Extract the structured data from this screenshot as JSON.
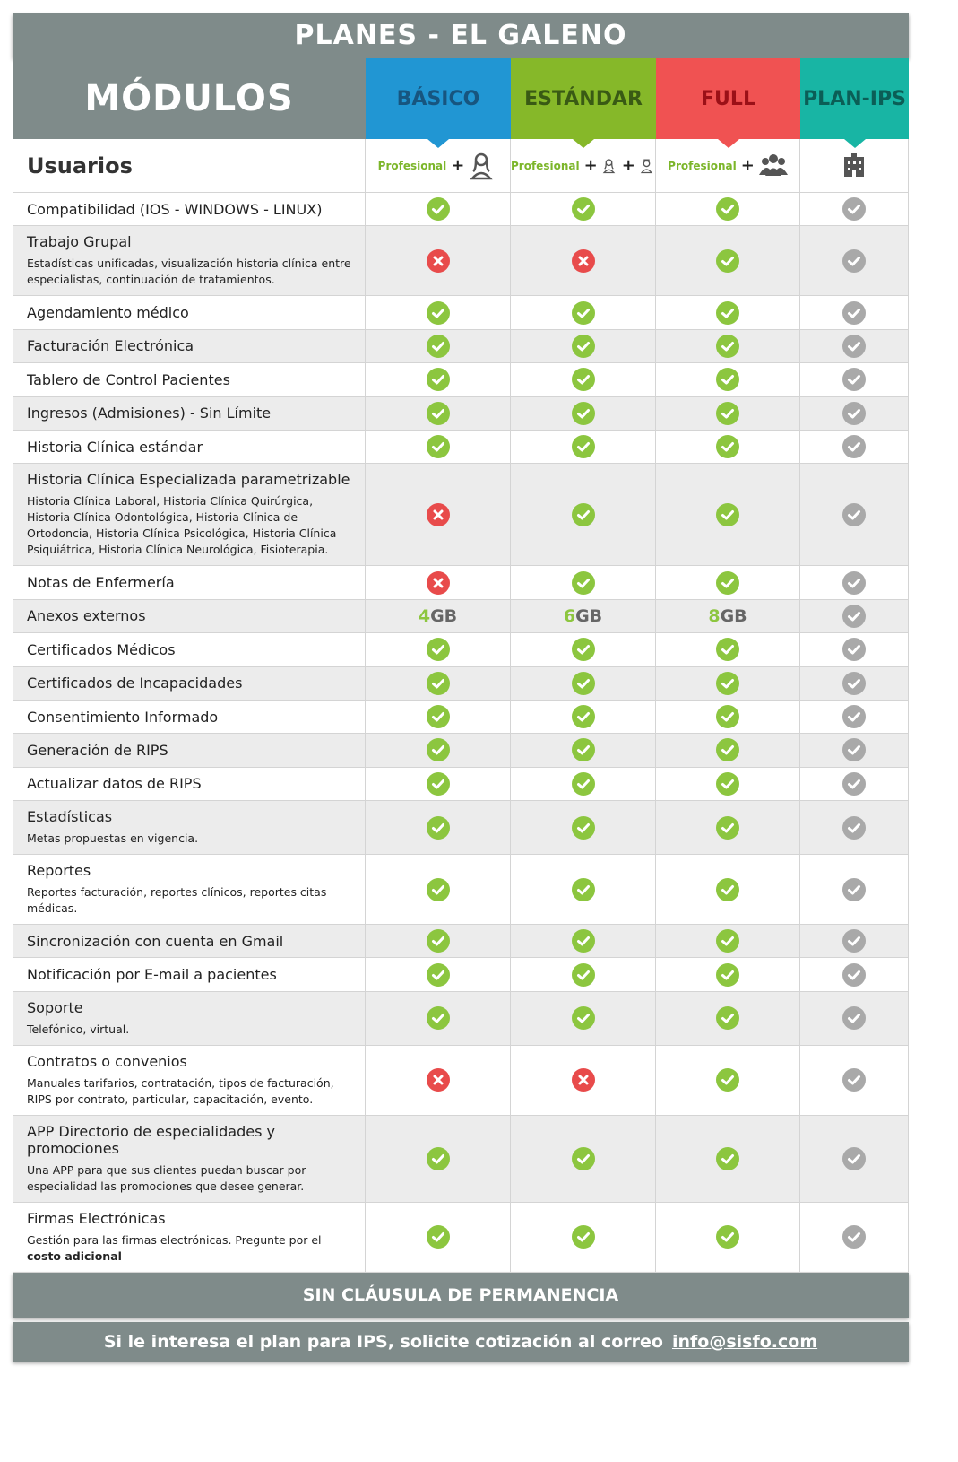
{
  "title": "PLANES - EL GALENO",
  "header": {
    "modules": "MÓDULOS",
    "plans": [
      {
        "name": "BÁSICO",
        "color": "#2196d3",
        "text_color": "#17557f"
      },
      {
        "name": "ESTÁNDAR",
        "color": "#86b829",
        "text_color": "#395a14"
      },
      {
        "name": "FULL",
        "color": "#f05252",
        "text_color": "#9b1017"
      },
      {
        "name": "PLAN-IPS",
        "color": "#18b5a4",
        "text_color": "#0b5e56"
      }
    ]
  },
  "users": {
    "label": "Usuarios",
    "cells": [
      {
        "text": "Profesional",
        "plus": [
          "+"
        ],
        "icons": [
          "woman"
        ]
      },
      {
        "text": "Profesional",
        "plus": [
          "+",
          "+"
        ],
        "icons": [
          "woman",
          "nurse"
        ]
      },
      {
        "text": "Profesional",
        "plus": [
          "+"
        ],
        "icons": [
          "group"
        ]
      },
      {
        "text": null,
        "plus": [],
        "icons": [
          "building"
        ]
      }
    ]
  },
  "rows": [
    {
      "name": "Compatibilidad (IOS - WINDOWS - LINUX)",
      "values": [
        "check",
        "check",
        "check",
        "na"
      ]
    },
    {
      "name": "Trabajo Grupal",
      "desc": "Estadísticas unificadas, visualización historia clínica entre especialistas, continuación de tratamientos.",
      "values": [
        "cross",
        "cross",
        "check",
        "na"
      ]
    },
    {
      "name": "Agendamiento médico",
      "values": [
        "check",
        "check",
        "check",
        "na"
      ]
    },
    {
      "name": "Facturación Electrónica",
      "values": [
        "check",
        "check",
        "check",
        "na"
      ]
    },
    {
      "name": "Tablero de Control Pacientes",
      "values": [
        "check",
        "check",
        "check",
        "na"
      ]
    },
    {
      "name": "Ingresos (Admisiones) - Sin Límite",
      "values": [
        "check",
        "check",
        "check",
        "na"
      ]
    },
    {
      "name": "Historia Clínica estándar",
      "values": [
        "check",
        "check",
        "check",
        "na"
      ]
    },
    {
      "name": "Historia Clínica Especializada parametrizable",
      "desc": "Historia Clínica Laboral, Historia Clínica Quirúrgica, Historia Clínica Odontológica, Historia Clínica de Ortodoncia, Historia Clínica Psicológica, Historia Clínica Psiquiátrica, Historia Clínica Neurológica, Fisioterapia.",
      "values": [
        "cross",
        "check",
        "check",
        "na"
      ]
    },
    {
      "name": "Notas de Enfermería",
      "values": [
        "cross",
        "check",
        "check",
        "na"
      ]
    },
    {
      "name": "Anexos externos",
      "values": [
        {
          "num": 4,
          "unit": "GB"
        },
        {
          "num": 6,
          "unit": "GB"
        },
        {
          "num": 8,
          "unit": "GB"
        },
        "na"
      ]
    },
    {
      "name": "Certificados Médicos",
      "values": [
        "check",
        "check",
        "check",
        "na"
      ]
    },
    {
      "name": "Certificados de Incapacidades",
      "values": [
        "check",
        "check",
        "check",
        "na"
      ]
    },
    {
      "name": "Consentimiento Informado",
      "values": [
        "check",
        "check",
        "check",
        "na"
      ]
    },
    {
      "name": "Generación de RIPS",
      "values": [
        "check",
        "check",
        "check",
        "na"
      ]
    },
    {
      "name": "Actualizar datos de RIPS",
      "values": [
        "check",
        "check",
        "check",
        "na"
      ]
    },
    {
      "name": "Estadísticas",
      "desc": "Metas propuestas en vigencia.",
      "values": [
        "check",
        "check",
        "check",
        "na"
      ]
    },
    {
      "name": "Reportes",
      "desc": "Reportes facturación, reportes clínicos, reportes citas médicas.",
      "values": [
        "check",
        "check",
        "check",
        "na"
      ]
    },
    {
      "name": "Sincronización con cuenta en Gmail",
      "values": [
        "check",
        "check",
        "check",
        "na"
      ]
    },
    {
      "name": "Notificación por E-mail a pacientes",
      "values": [
        "check",
        "check",
        "check",
        "na"
      ]
    },
    {
      "name": "Soporte",
      "desc": "Telefónico, virtual.",
      "values": [
        "check",
        "check",
        "check",
        "na"
      ]
    },
    {
      "name": "Contratos o convenios",
      "desc": "Manuales tarifarios, contratación, tipos de facturación, RIPS por contrato, particular, capacitación, evento.",
      "values": [
        "cross",
        "cross",
        "check",
        "na"
      ]
    },
    {
      "name": "APP Directorio de especialidades y promociones",
      "desc": "Una APP para que sus clientes puedan buscar por especialidad las promociones que desee generar.",
      "values": [
        "check",
        "check",
        "check",
        "na"
      ]
    },
    {
      "name": "Firmas Electrónicas",
      "desc": "Gestión para las firmas electrónicas. Pregunte por el",
      "desc_bold": "costo adicional",
      "values": [
        "check",
        "check",
        "check",
        "na"
      ]
    }
  ],
  "footer": {
    "note": "SIN CLÁUSULA DE PERMANENCIA",
    "contact": "Si le interesa el plan para IPS, solicite cotización al correo",
    "email": "info@sisfo.com"
  }
}
